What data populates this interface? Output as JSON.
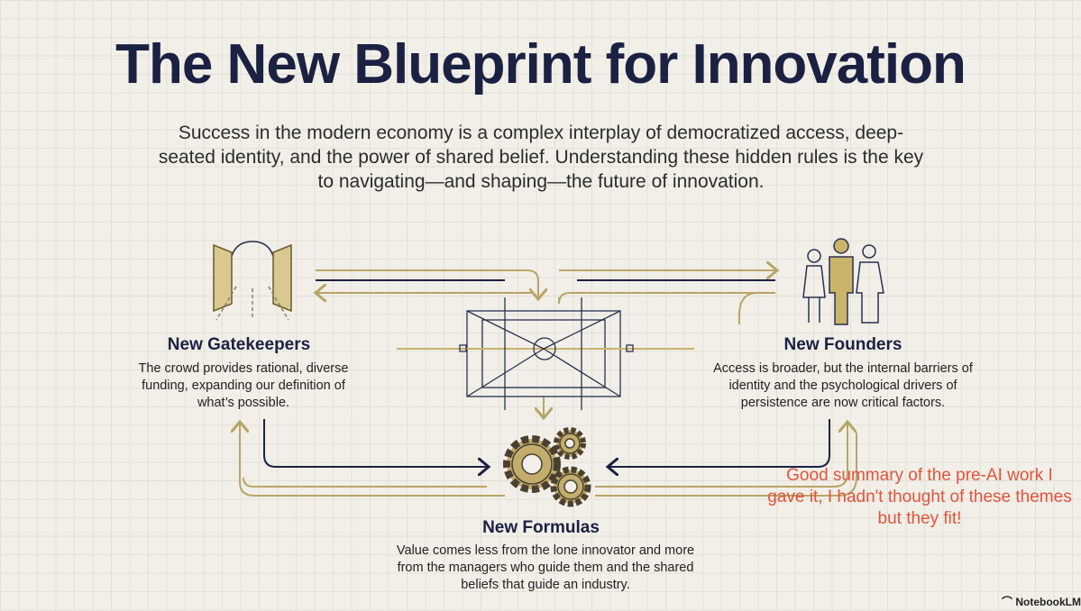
{
  "title": "The New Blueprint for Innovation",
  "subtitle": "Success in the modern economy is a complex interplay of democratized access, deep-seated identity, and the power of shared belief. Understanding these hidden rules is the key to navigating—and shaping—the future of innovation.",
  "sections": [
    {
      "heading": "New Gatekeepers",
      "text": "The crowd provides rational, diverse funding, expanding our definition of what’s possible.",
      "icon": "open-doors-icon"
    },
    {
      "heading": "New Founders",
      "text": "Access is broader, but the internal barriers of identity and the psychological drivers of persistence are now critical factors.",
      "icon": "people-icon"
    },
    {
      "heading": "New Formulas",
      "text": "Value comes less from the lone innovator and more from the managers who guide them and the shared beliefs that guide an industry.",
      "icon": "gears-icon"
    }
  ],
  "center_icon": "blueprint-frame-icon",
  "annotation": "Good summary of the pre-AI work I gave it, I hadn't thought of these themes but they fit!",
  "watermark": "NotebookLM",
  "colors": {
    "navy": "#1a2142",
    "gold": "#b9a566",
    "annotation": "#e2533c",
    "background": "#f1efe8"
  }
}
